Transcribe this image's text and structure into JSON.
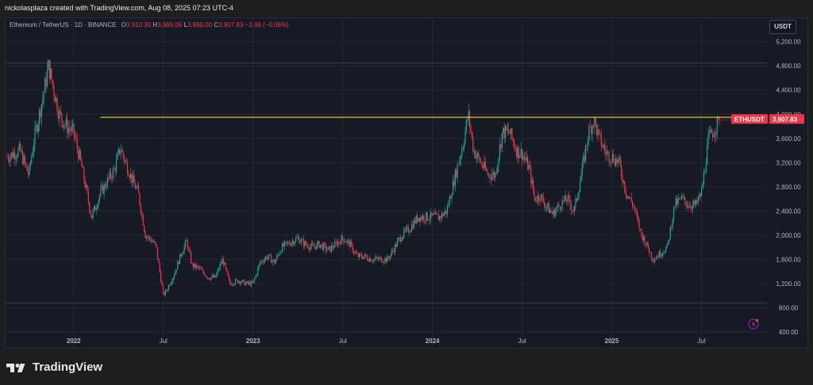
{
  "caption": "nickolasplaza created with TradingView.com, Aug 08, 2025 07:23 UTC-4",
  "legend": {
    "symbol": "Ethereum / TetherUS · 1D · BINANCE",
    "open_label": "O",
    "open": "3,910.30",
    "high_label": "H",
    "high": "3,969.06",
    "low_label": "L",
    "low": "3,880.00",
    "close_label": "C",
    "close": "3,907.83",
    "change": "−2.48 (−0.06%)"
  },
  "currency_badge": "USDT",
  "price_tag": {
    "symbol": "ETHUSDT",
    "value": "3,907.83"
  },
  "brand": "TradingView",
  "colors": {
    "up": "#26a69a",
    "down": "#f23645",
    "resistance": "#f2d336",
    "background": "#161a25",
    "grid": "#232834"
  },
  "chart_data": {
    "type": "candlestick",
    "title": "Ethereum / TetherUS · 1D · BINANCE",
    "currency": "USDT",
    "y_ticks": [
      400,
      800,
      1200,
      1600,
      2000,
      2400,
      2800,
      3200,
      3600,
      4000,
      4400,
      4800,
      5200
    ],
    "y_tick_labels": [
      "400.00",
      "800.00",
      "1,200.00",
      "1,600.00",
      "2,000.00",
      "2,400.00",
      "2,800.00",
      "3,200.00",
      "3,600.00",
      "4,000.00",
      "4,400.00",
      "4,800.00",
      "5,200.00"
    ],
    "ylim": [
      150,
      5550
    ],
    "x_ticks": [
      {
        "label": "2022",
        "t": 2022.0,
        "bold": true
      },
      {
        "label": "Jul",
        "t": 2022.5,
        "bold": false
      },
      {
        "label": "2023",
        "t": 2023.0,
        "bold": true
      },
      {
        "label": "Jul",
        "t": 2023.5,
        "bold": false
      },
      {
        "label": "2024",
        "t": 2024.0,
        "bold": true
      },
      {
        "label": "Jul",
        "t": 2024.5,
        "bold": false
      },
      {
        "label": "2025",
        "t": 2025.0,
        "bold": true
      },
      {
        "label": "Jul",
        "t": 2025.5,
        "bold": false
      }
    ],
    "xlim": [
      2021.625,
      2025.865
    ],
    "last_close": 3907.83,
    "resistance_level": 3950,
    "resistance_start": 2022.15,
    "upper_range_line": 4850,
    "lower_range_line": 880,
    "series": [
      {
        "name": "ETHUSDT close (key swing points)",
        "points": [
          [
            2021.63,
            3300
          ],
          [
            2021.7,
            3400
          ],
          [
            2021.75,
            3000
          ],
          [
            2021.78,
            3600
          ],
          [
            2021.83,
            4300
          ],
          [
            2021.86,
            4800
          ],
          [
            2021.89,
            4400
          ],
          [
            2021.92,
            4000
          ],
          [
            2021.96,
            3800
          ],
          [
            2022.0,
            3700
          ],
          [
            2022.04,
            3200
          ],
          [
            2022.08,
            2600
          ],
          [
            2022.1,
            2300
          ],
          [
            2022.15,
            2700
          ],
          [
            2022.19,
            2900
          ],
          [
            2022.23,
            3100
          ],
          [
            2022.26,
            3450
          ],
          [
            2022.29,
            3200
          ],
          [
            2022.33,
            2900
          ],
          [
            2022.36,
            2700
          ],
          [
            2022.4,
            2000
          ],
          [
            2022.44,
            1900
          ],
          [
            2022.46,
            1800
          ],
          [
            2022.5,
            1000
          ],
          [
            2022.52,
            1100
          ],
          [
            2022.56,
            1350
          ],
          [
            2022.6,
            1700
          ],
          [
            2022.63,
            1900
          ],
          [
            2022.66,
            1500
          ],
          [
            2022.7,
            1450
          ],
          [
            2022.75,
            1300
          ],
          [
            2022.79,
            1300
          ],
          [
            2022.83,
            1600
          ],
          [
            2022.87,
            1200
          ],
          [
            2022.92,
            1250
          ],
          [
            2022.96,
            1200
          ],
          [
            2023.0,
            1200
          ],
          [
            2023.04,
            1550
          ],
          [
            2023.08,
            1650
          ],
          [
            2023.12,
            1550
          ],
          [
            2023.16,
            1800
          ],
          [
            2023.19,
            1850
          ],
          [
            2023.25,
            1950
          ],
          [
            2023.29,
            1850
          ],
          [
            2023.33,
            1800
          ],
          [
            2023.37,
            1850
          ],
          [
            2023.42,
            1750
          ],
          [
            2023.46,
            1850
          ],
          [
            2023.5,
            1950
          ],
          [
            2023.54,
            1850
          ],
          [
            2023.58,
            1650
          ],
          [
            2023.62,
            1650
          ],
          [
            2023.66,
            1600
          ],
          [
            2023.7,
            1600
          ],
          [
            2023.75,
            1600
          ],
          [
            2023.79,
            1800
          ],
          [
            2023.83,
            2000
          ],
          [
            2023.87,
            2100
          ],
          [
            2023.92,
            2300
          ],
          [
            2023.96,
            2300
          ],
          [
            2024.0,
            2300
          ],
          [
            2024.04,
            2300
          ],
          [
            2024.08,
            2400
          ],
          [
            2024.12,
            2900
          ],
          [
            2024.17,
            3500
          ],
          [
            2024.2,
            4000
          ],
          [
            2024.23,
            3400
          ],
          [
            2024.27,
            3200
          ],
          [
            2024.31,
            3000
          ],
          [
            2024.35,
            3000
          ],
          [
            2024.39,
            3700
          ],
          [
            2024.43,
            3700
          ],
          [
            2024.47,
            3400
          ],
          [
            2024.5,
            3350
          ],
          [
            2024.54,
            3100
          ],
          [
            2024.57,
            2600
          ],
          [
            2024.6,
            2650
          ],
          [
            2024.63,
            2500
          ],
          [
            2024.67,
            2350
          ],
          [
            2024.71,
            2500
          ],
          [
            2024.75,
            2600
          ],
          [
            2024.79,
            2400
          ],
          [
            2024.83,
            3000
          ],
          [
            2024.87,
            3700
          ],
          [
            2024.9,
            3900
          ],
          [
            2024.93,
            3600
          ],
          [
            2024.97,
            3350
          ],
          [
            2025.0,
            3300
          ],
          [
            2025.04,
            3200
          ],
          [
            2025.08,
            2700
          ],
          [
            2025.12,
            2500
          ],
          [
            2025.16,
            2050
          ],
          [
            2025.2,
            1800
          ],
          [
            2025.23,
            1600
          ],
          [
            2025.27,
            1700
          ],
          [
            2025.31,
            1800
          ],
          [
            2025.35,
            2500
          ],
          [
            2025.39,
            2600
          ],
          [
            2025.43,
            2500
          ],
          [
            2025.47,
            2500
          ],
          [
            2025.5,
            2700
          ],
          [
            2025.54,
            3600
          ],
          [
            2025.58,
            3800
          ],
          [
            2025.6,
            3900
          ]
        ]
      }
    ]
  }
}
